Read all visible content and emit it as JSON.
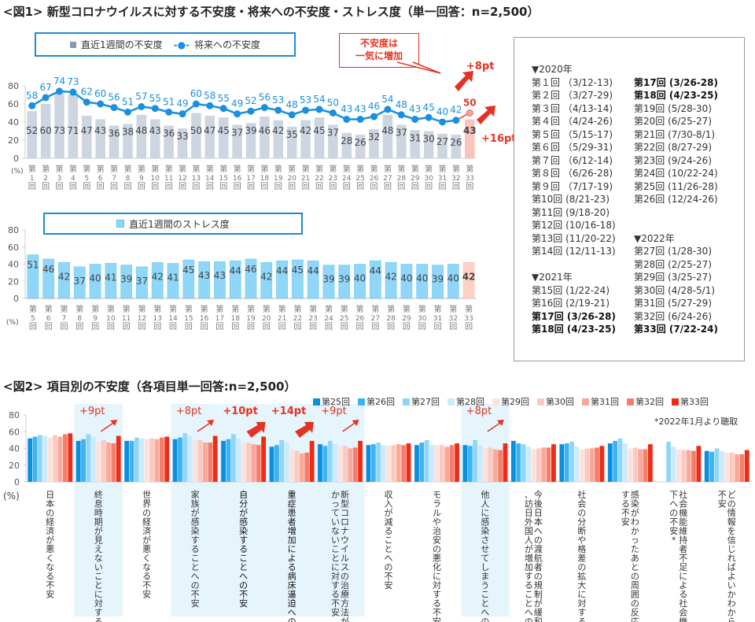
{
  "fig1": {
    "title": "<図1> 新型コロナウイルスに対する不安度・将来への不安度・ストレス度（単一回答：n=2,500）",
    "legend": {
      "bar": "直近1週間の不安度",
      "line": "将来への不安度"
    },
    "callout": "不安度は\n一気に増加",
    "callout_line1": "不安度は",
    "callout_line2": "一気に増加",
    "delta_line": "+8pt",
    "delta_bar": "+16pt",
    "unit": "(%)"
  },
  "fig1b": {
    "legend": "直近1週間のストレス度",
    "unit": "(%)"
  },
  "schedule": {
    "col1": [
      {
        "text": "▼2020年",
        "bold": false
      },
      {
        "text": "第１回 （3/12-13)",
        "bold": false
      },
      {
        "text": "第２回 （3/27-29)",
        "bold": false
      },
      {
        "text": "第３回 （4/13-14)",
        "bold": false
      },
      {
        "text": "第４回 （4/24-26)",
        "bold": false
      },
      {
        "text": "第５回 （5/15-17)",
        "bold": false
      },
      {
        "text": "第６回 （5/29-31)",
        "bold": false
      },
      {
        "text": "第７回 （6/12-14)",
        "bold": false
      },
      {
        "text": "第８回 （6/26-28)",
        "bold": false
      },
      {
        "text": "第９回 （7/17-19)",
        "bold": false
      },
      {
        "text": "第10回 (8/21-23)",
        "bold": false
      },
      {
        "text": "第11回 (9/18-20)",
        "bold": false
      },
      {
        "text": "第12回 (10/16-18)",
        "bold": false
      },
      {
        "text": "第13回 (11/20-22)",
        "bold": false
      },
      {
        "text": "第14回 (12/11-13)",
        "bold": false
      },
      {
        "text": "",
        "bold": false
      },
      {
        "text": "▼2021年",
        "bold": false
      },
      {
        "text": "第15回 (1/22-24)",
        "bold": false
      },
      {
        "text": "第16回 (2/19-21)",
        "bold": false
      },
      {
        "text": "第17回 (3/26-28)",
        "bold": true
      },
      {
        "text": "第18回 (4/23-25)",
        "bold": true
      }
    ],
    "col2": [
      {
        "text": "",
        "bold": false
      },
      {
        "text": "第17回 (3/26-28)",
        "bold": true
      },
      {
        "text": "第18回 (4/23-25)",
        "bold": true
      },
      {
        "text": "第19回 (5/28-30)",
        "bold": false
      },
      {
        "text": "第20回 (6/25-27)",
        "bold": false
      },
      {
        "text": "第21回 (7/30-8/1)",
        "bold": false
      },
      {
        "text": "第22回 (8/27-29)",
        "bold": false
      },
      {
        "text": "第23回 (9/24-26)",
        "bold": false
      },
      {
        "text": "第24回 (10/22-24)",
        "bold": false
      },
      {
        "text": "第25回 (11/26-28)",
        "bold": false
      },
      {
        "text": "第26回 (12/24-26)",
        "bold": false
      },
      {
        "text": "",
        "bold": false
      },
      {
        "text": "",
        "bold": false
      },
      {
        "text": "▼2022年",
        "bold": false
      },
      {
        "text": "第27回 (1/28-30)",
        "bold": false
      },
      {
        "text": "第28回 (2/25-27)",
        "bold": false
      },
      {
        "text": "第29回 (3/25-27)",
        "bold": false
      },
      {
        "text": "第30回 (4/28-5/1)",
        "bold": false
      },
      {
        "text": "第31回 (5/27-29)",
        "bold": false
      },
      {
        "text": "第32回 (6/24-26)",
        "bold": false
      },
      {
        "text": "第33回 (7/22-24)",
        "bold": true
      }
    ]
  },
  "fig2": {
    "title": "<図2> 項目別の不安度（各項目単一回答:n=2,500）",
    "note": "*2022年1月より聴取",
    "unit": "(%)"
  },
  "colors": {
    "bar_gray": "#ccd5e0",
    "bar_highlight": "#f9c4bb",
    "line_blue": "#1a8fe0",
    "line_highlight": "#f0655a",
    "stress_bar": "#8fd6f8",
    "accent_red": "#e53222",
    "highlight_bg": "#e6f5fc",
    "legend_border": "#1e8ad6"
  },
  "chart_data": [
    {
      "type": "bar+line",
      "title": "新型コロナウイルスに対する不安度・将来への不安度",
      "categories": [
        "第1回",
        "第2回",
        "第3回",
        "第4回",
        "第5回",
        "第6回",
        "第7回",
        "第8回",
        "第9回",
        "第10回",
        "第11回",
        "第12回",
        "第13回",
        "第14回",
        "第15回",
        "第16回",
        "第17回",
        "第18回",
        "第19回",
        "第20回",
        "第21回",
        "第22回",
        "第23回",
        "第24回",
        "第25回",
        "第26回",
        "第27回",
        "第28回",
        "第29回",
        "第30回",
        "第31回",
        "第32回",
        "第33回"
      ],
      "series": [
        {
          "name": "直近1週間の不安度",
          "kind": "bar",
          "values": [
            52,
            60,
            73,
            71,
            47,
            43,
            36,
            38,
            48,
            43,
            36,
            33,
            50,
            47,
            45,
            37,
            39,
            46,
            42,
            35,
            42,
            45,
            37,
            28,
            26,
            32,
            48,
            37,
            31,
            30,
            27,
            26,
            43
          ]
        },
        {
          "name": "将来への不安度",
          "kind": "line",
          "values": [
            58,
            67,
            74,
            73,
            62,
            60,
            56,
            51,
            57,
            55,
            51,
            49,
            60,
            58,
            55,
            49,
            52,
            56,
            53,
            48,
            53,
            54,
            50,
            43,
            43,
            46,
            54,
            48,
            43,
            45,
            40,
            42,
            50
          ]
        }
      ],
      "ylim": [
        0,
        80
      ],
      "yticks": [
        0,
        20,
        40,
        60,
        80
      ],
      "ylabel": "(%)",
      "annotations": [
        "不安度は一気に増加",
        "+8pt",
        "+16pt"
      ]
    },
    {
      "type": "bar",
      "title": "直近1週間のストレス度",
      "categories": [
        "第5回",
        "第6回",
        "第7回",
        "第8回",
        "第9回",
        "第10回",
        "第11回",
        "第12回",
        "第13回",
        "第14回",
        "第15回",
        "第16回",
        "第17回",
        "第18回",
        "第19回",
        "第20回",
        "第21回",
        "第22回",
        "第23回",
        "第24回",
        "第25回",
        "第26回",
        "第27回",
        "第28回",
        "第29回",
        "第30回",
        "第31回",
        "第32回",
        "第33回"
      ],
      "values": [
        51,
        46,
        42,
        37,
        40,
        41,
        39,
        37,
        42,
        41,
        45,
        43,
        43,
        44,
        46,
        42,
        44,
        45,
        44,
        39,
        39,
        40,
        44,
        42,
        40,
        40,
        39,
        40,
        42
      ],
      "ylim": [
        0,
        80
      ],
      "yticks": [
        0,
        20,
        40,
        60,
        80
      ],
      "ylabel": "(%)"
    },
    {
      "type": "bar",
      "title": "項目別の不安度",
      "legend_position": "top-right",
      "categories": [
        "日本の経済が悪くなる不安",
        "終息時期が見えないことに対する不安",
        "世界の経済が悪くなる不安",
        "家族が感染することへの不安",
        "自分が感染することへの不安",
        "重症患者増加による病床逼迫への不安",
        "新型コロナウイルスの治療方法がみつかっていないことに対する不安",
        "収入が減ることへの不安",
        "モラルや治安の悪化に対する不安",
        "他人に感染させてしまうことへの不安",
        "今後日本への渡航者の規制が緩和され、訪日外国人が増加することへの不安",
        "社会の分断や格差の拡大に対する不安",
        "感染がわかったあとの周囲の反応に対する不安",
        "社会機能維持者不足による社会機能低下への不安*",
        "どの情報を信じればよいかわからない不安"
      ],
      "bold_categories": [
        4,
        5
      ],
      "highlighted_categories": [
        1,
        3,
        4,
        5,
        6,
        9
      ],
      "series": [
        {
          "name": "第25回",
          "color": "#0a8ee0",
          "values": [
            52,
            49,
            49,
            51,
            49,
            42,
            45,
            44,
            44,
            44,
            49,
            45,
            46,
            null,
            37
          ]
        },
        {
          "name": "第26回",
          "color": "#3db3f4",
          "values": [
            54,
            51,
            49,
            53,
            51,
            44,
            43,
            45,
            47,
            43,
            46,
            46,
            49,
            null,
            36
          ]
        },
        {
          "name": "第27回",
          "color": "#8fd6f8",
          "values": [
            56,
            57,
            53,
            58,
            57,
            50,
            49,
            47,
            50,
            50,
            45,
            48,
            52,
            48,
            40
          ]
        },
        {
          "name": "第28回",
          "color": "#c9ebfb",
          "values": [
            55,
            54,
            52,
            55,
            52,
            47,
            45,
            44,
            44,
            44,
            42,
            42,
            46,
            42,
            37
          ]
        },
        {
          "name": "第29回",
          "color": "#fde1dc",
          "values": [
            53,
            48,
            51,
            50,
            46,
            39,
            42,
            43,
            44,
            40,
            39,
            39,
            40,
            39,
            35
          ]
        },
        {
          "name": "第30回",
          "color": "#fcc9bf",
          "values": [
            56,
            50,
            52,
            50,
            47,
            37,
            43,
            44,
            44,
            41,
            40,
            40,
            41,
            38,
            35
          ]
        },
        {
          "name": "第31回",
          "color": "#f9a899",
          "values": [
            54,
            47,
            51,
            47,
            45,
            34,
            40,
            45,
            42,
            39,
            41,
            40,
            39,
            38,
            33
          ]
        },
        {
          "name": "第32回",
          "color": "#f57e6a",
          "values": [
            57,
            46,
            53,
            47,
            44,
            35,
            41,
            44,
            44,
            38,
            41,
            41,
            39,
            37,
            33
          ]
        },
        {
          "name": "第33回",
          "color": "#ee2b16",
          "values": [
            58,
            55,
            54,
            55,
            54,
            49,
            49,
            46,
            46,
            46,
            45,
            43,
            45,
            43,
            38
          ]
        }
      ],
      "annotations": [
        {
          "category": 1,
          "text": "+9pt"
        },
        {
          "category": 3,
          "text": "+8pt"
        },
        {
          "category": 4,
          "text": "+10pt"
        },
        {
          "category": 5,
          "text": "+14pt"
        },
        {
          "category": 6,
          "text": "+9pt"
        },
        {
          "category": 9,
          "text": "+8pt"
        }
      ],
      "ylim": [
        0,
        80
      ],
      "yticks": [
        0,
        20,
        40,
        60,
        80
      ],
      "ylabel": "(%)",
      "note": "*2022年1月より聴取"
    }
  ]
}
